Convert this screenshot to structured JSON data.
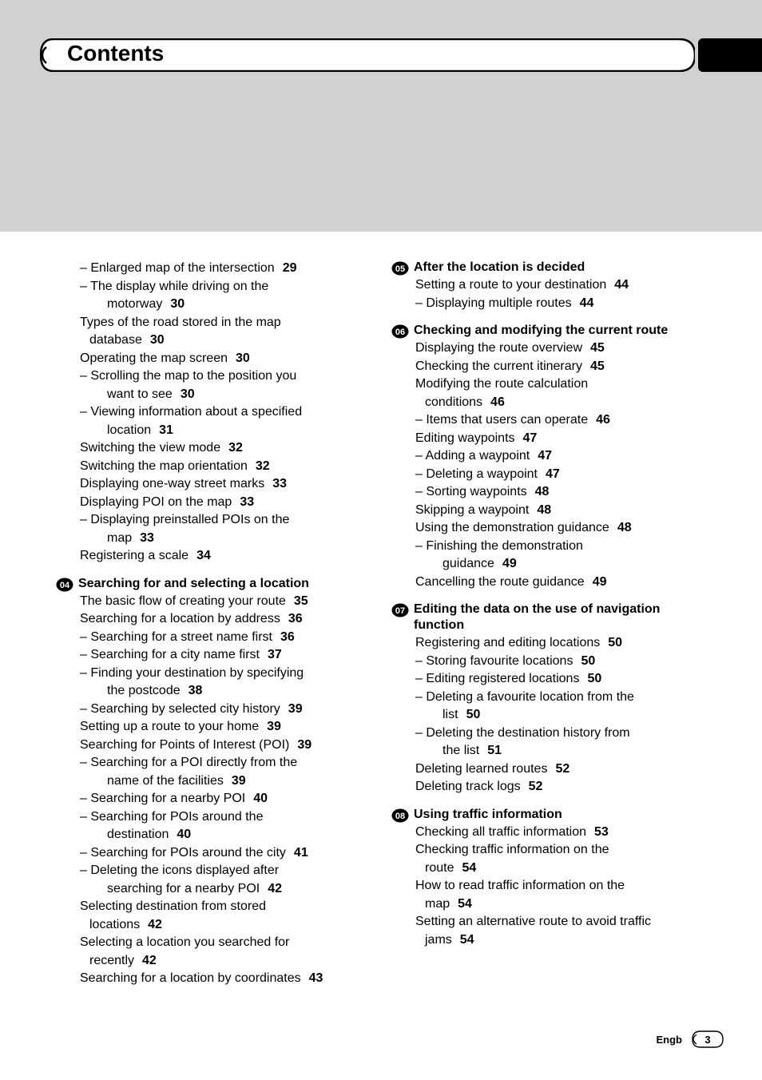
{
  "header": {
    "title": "Contents"
  },
  "footer": {
    "label": "Engb",
    "page": "3"
  },
  "col1": {
    "pre": [
      {
        "type": "sub",
        "text": "Enlarged map of the intersection",
        "pg": "29"
      },
      {
        "type": "sub",
        "text": "The display while driving on the motorway",
        "pg": "30",
        "wrap": true,
        "line1": "The display while driving on the",
        "line2": "motorway"
      },
      {
        "type": "ind1",
        "text": "Types of the road stored in the map database",
        "pg": "30",
        "wrap": true,
        "line1": "Types of the road stored in the map",
        "line2": "database"
      },
      {
        "type": "ind1",
        "text": "Operating the map screen",
        "pg": "30"
      },
      {
        "type": "sub",
        "text": "Scrolling the map to the position you want to see",
        "pg": "30",
        "wrap": true,
        "line1": "Scrolling the map to the position you",
        "line2": "want to see"
      },
      {
        "type": "sub",
        "text": "Viewing information about a specified location",
        "pg": "31",
        "wrap": true,
        "line1": "Viewing information about a specified",
        "line2": "location"
      },
      {
        "type": "ind1",
        "text": "Switching the view mode",
        "pg": "32"
      },
      {
        "type": "ind1",
        "text": "Switching the map orientation",
        "pg": "32"
      },
      {
        "type": "ind1",
        "text": "Displaying one-way street marks",
        "pg": "33"
      },
      {
        "type": "ind1",
        "text": "Displaying POI on the map",
        "pg": "33"
      },
      {
        "type": "sub",
        "text": "Displaying preinstalled POIs on the map",
        "pg": "33",
        "wrap": true,
        "line1": "Displaying preinstalled POIs on the",
        "line2": "map"
      },
      {
        "type": "ind1",
        "text": "Registering a scale",
        "pg": "34"
      }
    ],
    "ch04": {
      "num": "04",
      "title": "Searching for and selecting a location",
      "items": [
        {
          "type": "ind1",
          "text": "The basic flow of creating your route",
          "pg": "35"
        },
        {
          "type": "ind1",
          "text": "Searching for a location by address",
          "pg": "36"
        },
        {
          "type": "sub",
          "text": "Searching for a street name first",
          "pg": "36"
        },
        {
          "type": "sub",
          "text": "Searching for a city name first",
          "pg": "37"
        },
        {
          "type": "sub",
          "text": "Finding your destination by specifying the postcode",
          "pg": "38",
          "wrap": true,
          "line1": "Finding your destination by specifying",
          "line2": "the postcode"
        },
        {
          "type": "sub",
          "text": "Searching by selected city history",
          "pg": "39"
        },
        {
          "type": "ind1",
          "text": "Setting up a route to your home",
          "pg": "39"
        },
        {
          "type": "ind1",
          "text": "Searching for Points of Interest (POI)",
          "pg": "39"
        },
        {
          "type": "sub",
          "text": "Searching for a POI directly from the name of the facilities",
          "pg": "39",
          "wrap": true,
          "line1": "Searching for a POI directly from the",
          "line2": "name of the facilities"
        },
        {
          "type": "sub",
          "text": "Searching for a nearby POI",
          "pg": "40"
        },
        {
          "type": "sub",
          "text": "Searching for POIs around the destination",
          "pg": "40",
          "wrap": true,
          "line1": "Searching for POIs around the",
          "line2": "destination"
        },
        {
          "type": "sub",
          "text": "Searching for POIs around the city",
          "pg": "41"
        },
        {
          "type": "sub",
          "text": "Deleting the icons displayed after searching for a nearby POI",
          "pg": "42",
          "wrap": true,
          "line1": "Deleting the icons displayed after",
          "line2": "searching for a nearby POI"
        },
        {
          "type": "ind1",
          "text": "Selecting destination from stored locations",
          "pg": "42",
          "wrap": true,
          "line1": "Selecting destination from stored",
          "line2": "locations"
        },
        {
          "type": "ind1",
          "text": "Selecting a location you searched for recently",
          "pg": "42",
          "wrap": true,
          "line1": "Selecting a location you searched for",
          "line2": "recently"
        },
        {
          "type": "ind1",
          "text": "Searching for a location by coordinates",
          "pg": "43"
        }
      ]
    }
  },
  "col2": {
    "ch05": {
      "num": "05",
      "title": "After the location is decided",
      "items": [
        {
          "type": "ind1",
          "text": "Setting a route to your destination",
          "pg": "44"
        },
        {
          "type": "sub",
          "text": "Displaying multiple routes",
          "pg": "44"
        }
      ]
    },
    "ch06": {
      "num": "06",
      "title": "Checking and modifying the current route",
      "items": [
        {
          "type": "ind1",
          "text": "Displaying the route overview",
          "pg": "45"
        },
        {
          "type": "ind1",
          "text": "Checking the current itinerary",
          "pg": "45"
        },
        {
          "type": "ind1",
          "text": "Modifying the route calculation conditions",
          "pg": "46",
          "wrap": true,
          "line1": "Modifying the route calculation",
          "line2": "conditions"
        },
        {
          "type": "sub",
          "text": "Items that users can operate",
          "pg": "46"
        },
        {
          "type": "ind1",
          "text": "Editing waypoints",
          "pg": "47"
        },
        {
          "type": "sub",
          "text": "Adding a waypoint",
          "pg": "47"
        },
        {
          "type": "sub",
          "text": "Deleting a waypoint",
          "pg": "47"
        },
        {
          "type": "sub",
          "text": "Sorting waypoints",
          "pg": "48"
        },
        {
          "type": "ind1",
          "text": "Skipping a waypoint",
          "pg": "48"
        },
        {
          "type": "ind1",
          "text": "Using the demonstration guidance",
          "pg": "48"
        },
        {
          "type": "sub",
          "text": "Finishing the demonstration guidance",
          "pg": "49",
          "wrap": true,
          "line1": "Finishing the demonstration",
          "line2": "guidance"
        },
        {
          "type": "ind1",
          "text": "Cancelling the route guidance",
          "pg": "49"
        }
      ]
    },
    "ch07": {
      "num": "07",
      "title": "Editing the data on the use of navigation function",
      "items": [
        {
          "type": "ind1",
          "text": "Registering and editing locations",
          "pg": "50"
        },
        {
          "type": "sub",
          "text": "Storing favourite locations",
          "pg": "50"
        },
        {
          "type": "sub",
          "text": "Editing registered locations",
          "pg": "50"
        },
        {
          "type": "sub",
          "text": "Deleting a favourite location from the list",
          "pg": "50",
          "wrap": true,
          "line1": "Deleting a favourite location from the",
          "line2": "list"
        },
        {
          "type": "sub",
          "text": "Deleting the destination history from the list",
          "pg": "51",
          "wrap": true,
          "line1": "Deleting the destination history from",
          "line2": "the list"
        },
        {
          "type": "ind1",
          "text": "Deleting learned routes",
          "pg": "52"
        },
        {
          "type": "ind1",
          "text": "Deleting track logs",
          "pg": "52"
        }
      ]
    },
    "ch08": {
      "num": "08",
      "title": "Using traffic information",
      "items": [
        {
          "type": "ind1",
          "text": "Checking all traffic information",
          "pg": "53"
        },
        {
          "type": "ind1",
          "text": "Checking traffic information on the route",
          "pg": "54",
          "wrap": true,
          "line1": "Checking traffic information on the",
          "line2": "route"
        },
        {
          "type": "ind1",
          "text": "How to read traffic information on the map",
          "pg": "54",
          "wrap": true,
          "line1": "How to read traffic information on the",
          "line2": "map"
        },
        {
          "type": "ind1",
          "text": "Setting an alternative route to avoid traffic jams",
          "pg": "54",
          "wrap": true,
          "line1": "Setting an alternative route to avoid traffic",
          "line2": "jams"
        }
      ]
    }
  }
}
